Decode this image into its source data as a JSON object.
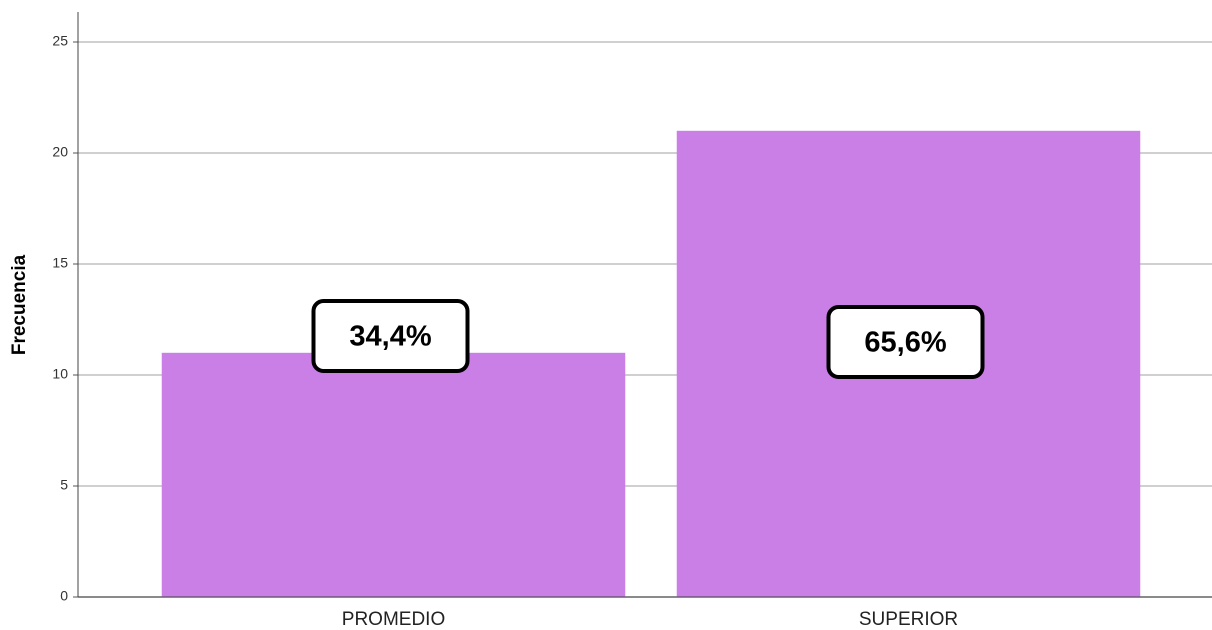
{
  "chart_data": {
    "type": "bar",
    "y_label": "Frecuencia",
    "categories": [
      "PROMEDIO",
      "SUPERIOR"
    ],
    "values": [
      11,
      21
    ],
    "color": "#c97fe5",
    "annotations": [
      "34,4%",
      "65,6%"
    ],
    "ylim": [
      0,
      26.3
    ],
    "yticks": [
      0,
      5,
      10,
      15,
      20,
      25
    ],
    "grid": true
  }
}
